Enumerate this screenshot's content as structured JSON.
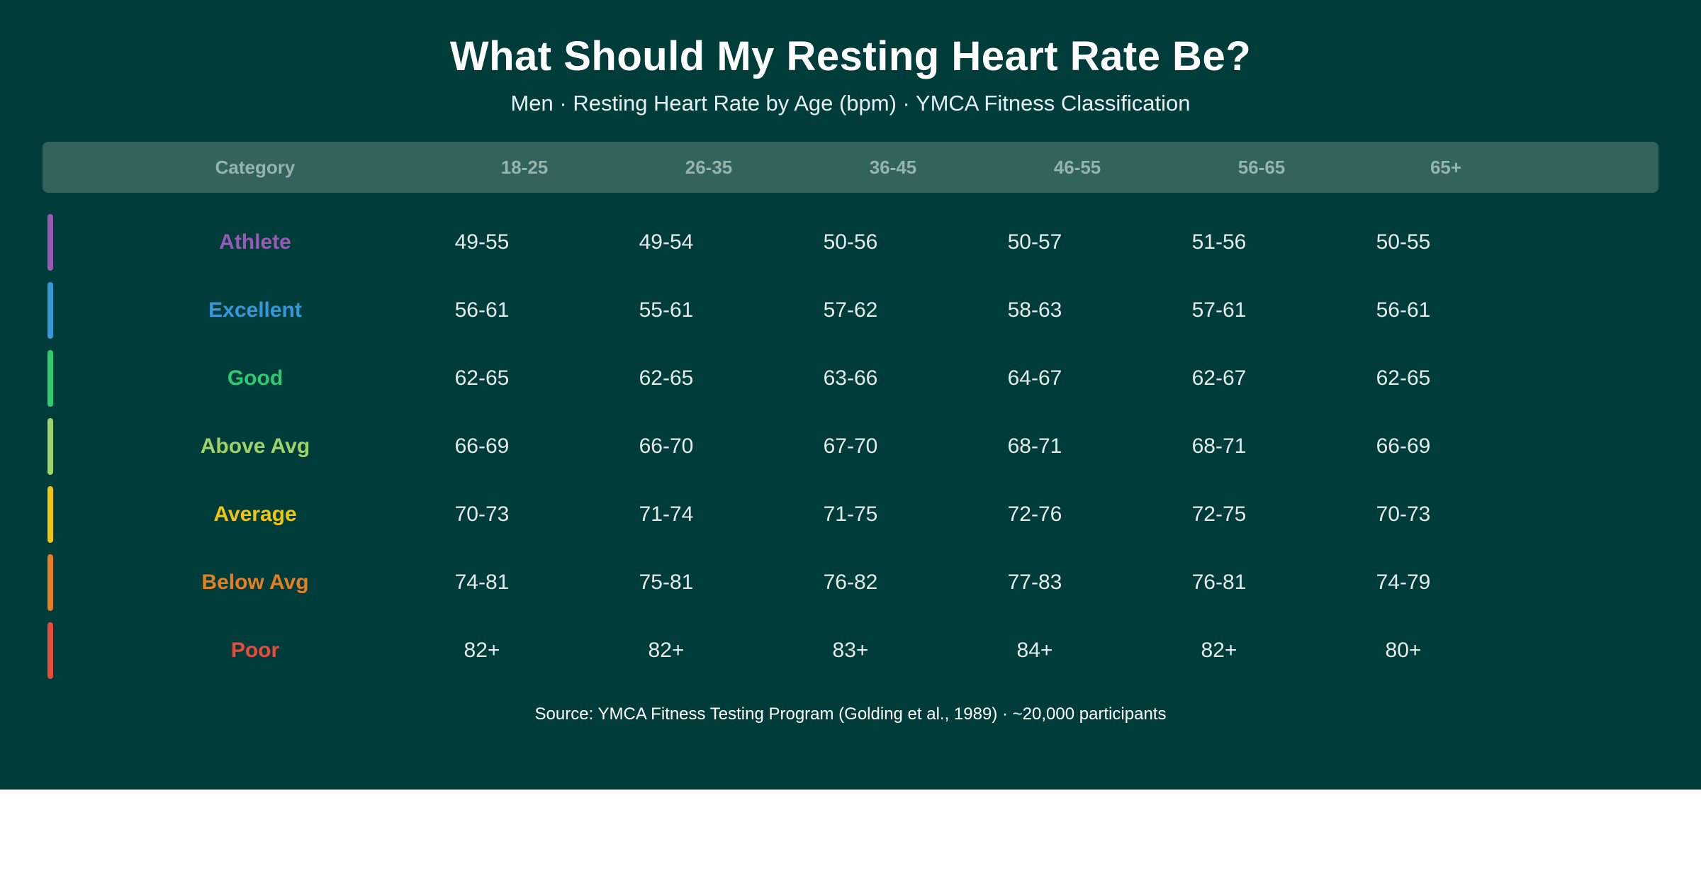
{
  "chart_data": {
    "type": "table",
    "title": "What Should My Resting Heart Rate Be?",
    "subtitle": "Men · Resting Heart Rate by Age (bpm) · YMCA Fitness Classification",
    "columns": [
      "Category",
      "18-25",
      "26-35",
      "36-45",
      "46-55",
      "56-65",
      "65+"
    ],
    "rows": [
      {
        "category": "Athlete",
        "color": "#9b59b6",
        "values": [
          "49-55",
          "49-54",
          "50-56",
          "50-57",
          "51-56",
          "50-55"
        ]
      },
      {
        "category": "Excellent",
        "color": "#3498db",
        "values": [
          "56-61",
          "55-61",
          "57-62",
          "58-63",
          "57-61",
          "56-61"
        ]
      },
      {
        "category": "Good",
        "color": "#2ecc71",
        "values": [
          "62-65",
          "62-65",
          "63-66",
          "64-67",
          "62-67",
          "62-65"
        ]
      },
      {
        "category": "Above Avg",
        "color": "#9ed36a",
        "values": [
          "66-69",
          "66-70",
          "67-70",
          "68-71",
          "68-71",
          "66-69"
        ]
      },
      {
        "category": "Average",
        "color": "#f1c40f",
        "values": [
          "70-73",
          "71-74",
          "71-75",
          "72-76",
          "72-75",
          "70-73"
        ]
      },
      {
        "category": "Below Avg",
        "color": "#e67e22",
        "values": [
          "74-81",
          "75-81",
          "76-82",
          "77-83",
          "76-81",
          "74-79"
        ]
      },
      {
        "category": "Poor",
        "color": "#e74c3c",
        "values": [
          "82+",
          "82+",
          "83+",
          "84+",
          "82+",
          "80+"
        ]
      }
    ],
    "source": "Source: YMCA Fitness Testing Program (Golding et al., 1989) · ~20,000 participants"
  },
  "colors": {
    "background": "#003d3a",
    "header_bar": "#33635d",
    "header_text": "#97b3ae",
    "cell_text": "#e4ecea"
  }
}
